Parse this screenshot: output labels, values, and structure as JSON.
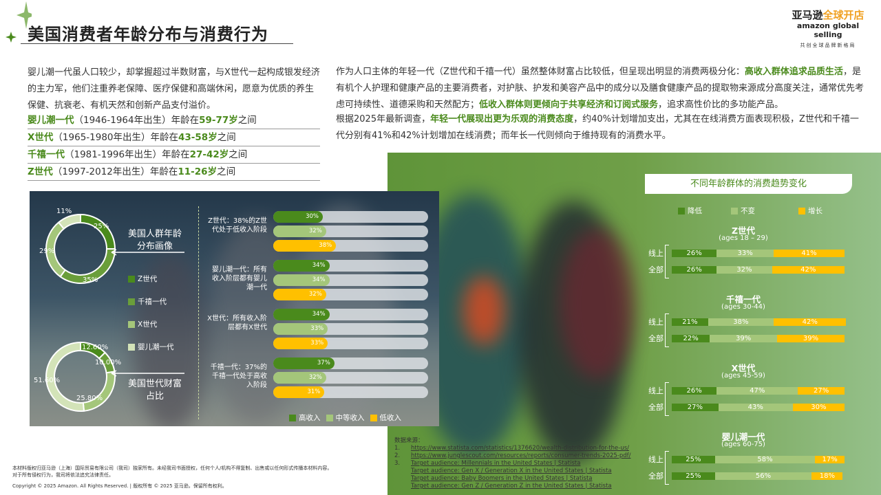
{
  "title": "美国消费者年龄分布与消费行为",
  "logo": {
    "cn": "亚马逊",
    "cn2": "全球开店",
    "en1": "amazon",
    "en2": "global selling",
    "slogan": "共创全球品牌新格局"
  },
  "intro": {
    "text": "婴儿潮一代虽人口较少，却掌握超过半数财富，与X世代一起构成银发经济的主力军，他们注重养老保障、医疗保健和高端休闲，愿意为优质的养生保健、抗衰老、有机天然和创新产品支付溢价。"
  },
  "generations": [
    {
      "name": "婴儿潮一代",
      "years": "（1946-1964年出生）年龄在",
      "range": "59-77岁",
      "tail": "之间"
    },
    {
      "name": "X世代",
      "years": "（1965-1980年出生）年龄在",
      "range": "43-58岁",
      "tail": "之间"
    },
    {
      "name": "千禧一代",
      "years": "（1981-1996年出生）年龄在",
      "range": "27-42岁",
      "tail": "之间"
    },
    {
      "name": "Z世代",
      "years": "（1997-2012年出生）年龄在",
      "range": "11-26岁",
      "tail": "之间"
    }
  ],
  "right_text": {
    "p1a": "作为人口主体的年轻一代（Z世代和千禧一代）虽然整体财富占比较低，但呈现出明显的消费两极分化：",
    "p1b": "高收入群体追求品质生活",
    "p1c": "，是有机个人护理和健康产品的主要消费者，对护肤、护发和美容产品中的成分以及膳食健康产品的提取物来源成分高度关注，通常优先考虑可持续性、道德采购和天然配方；",
    "p1d": "低收入群体则更倾向于共享经济和订阅式服务",
    "p1e": "，追求高性价比的多功能产品。",
    "p2a": "根据2025年最新调查，",
    "p2b": "年轻一代展现出更为乐观的消费态度",
    "p2c": "，约40%计划增加支出，尤其在在线消费方面表现积极，Z世代和千禧一代分别有41%和42%计划增加在线消费；而年长一代则倾向于维持现有的消费水平。"
  },
  "colors": {
    "dark_green": "#4a8a1c",
    "mid_green": "#6a9e3a",
    "light_green": "#a4c67a",
    "pale_green": "#d3e3b8",
    "yellow": "#ffc000"
  },
  "chart_data": [
    {
      "type": "pie",
      "title": "美国人群年龄分布画像",
      "categories": [
        "Z世代",
        "千禧一代",
        "X世代",
        "婴儿潮一代"
      ],
      "values": [
        25,
        35,
        29,
        11
      ],
      "labels": [
        "25%",
        "35%",
        "29%",
        "11%"
      ]
    },
    {
      "type": "pie",
      "title": "美国世代财富占比",
      "categories": [
        "Z世代",
        "千禧一代",
        "X世代",
        "婴儿潮一代"
      ],
      "values": [
        12.6,
        10.0,
        25.8,
        51.6
      ],
      "labels": [
        "12.60%",
        "10.00%",
        "25.80%",
        "51.60%"
      ]
    },
    {
      "type": "bar",
      "orientation": "horizontal",
      "legend": [
        "高收入",
        "中等收入",
        "低收入"
      ],
      "groups": [
        {
          "label": "Z世代：38%的Z世代处于低收入阶段",
          "values": [
            30,
            32,
            38
          ]
        },
        {
          "label": "婴儿潮一代：所有收入阶层都有婴儿潮一代",
          "values": [
            34,
            34,
            32
          ]
        },
        {
          "label": "X世代：所有收入阶层都有X世代",
          "values": [
            34,
            33,
            33
          ]
        },
        {
          "label": "千禧一代：37%的千禧一代处于高收入阶段",
          "values": [
            37,
            32,
            31
          ]
        }
      ]
    },
    {
      "type": "bar",
      "stacked": true,
      "orientation": "horizontal",
      "title": "不同年龄群体的消费趋势变化",
      "legend": [
        "降低",
        "不变",
        "增长"
      ],
      "groups": [
        {
          "name": "Z世代",
          "ages": "(ages 18 – 29)",
          "rows": [
            {
              "label": "线上",
              "values": [
                26,
                33,
                41
              ]
            },
            {
              "label": "全部",
              "values": [
                26,
                32,
                42
              ]
            }
          ]
        },
        {
          "name": "千禧一代",
          "ages": "(ages 30-44)",
          "rows": [
            {
              "label": "线上",
              "values": [
                21,
                38,
                42
              ]
            },
            {
              "label": "全部",
              "values": [
                22,
                39,
                39
              ]
            }
          ]
        },
        {
          "name": "X世代",
          "ages": "(ages 45-59)",
          "rows": [
            {
              "label": "线上",
              "values": [
                26,
                47,
                27
              ]
            },
            {
              "label": "全部",
              "values": [
                27,
                43,
                30
              ]
            }
          ]
        },
        {
          "name": "婴儿潮一代",
          "ages": "(ages 60-75)",
          "rows": [
            {
              "label": "线上",
              "values": [
                25,
                58,
                17
              ]
            },
            {
              "label": "全部",
              "values": [
                25,
                56,
                18
              ]
            }
          ]
        }
      ]
    }
  ],
  "sources": {
    "heading": "数据来源：",
    "items": [
      {
        "num": "1.",
        "text": "https://www.statista.com/statistics/1376620/wealth-distribution-for-the-us/"
      },
      {
        "num": "2.",
        "text": "https://www.junglescout.com/resources/reports/consumer-trends-2025-pdf/"
      },
      {
        "num": "3.",
        "text": "Target audience: Millennials in the United States | Statista"
      },
      {
        "num": "",
        "text": "Target audience: Gen X / Generation X in the United States | Statista"
      },
      {
        "num": "",
        "text": "Target audience: Baby Boomers in the United States | Statista"
      },
      {
        "num": "",
        "text": "Target audience: Gen Z / Generation Z in the United States | Statista"
      }
    ]
  },
  "footer": {
    "line1": "本材料版权归亚马逊（上海）国际贸易有限公司（我司）独家所有。未经我司书面授权，任何个人/机构不得复制、出售或以任何形式传播本材料内容。",
    "line2": "对于所有侵权行为，我司将依法追究法律责任。",
    "copyright": "Copyright © 2025 Amazon. All Rights Reserved. | 版权所有 © 2025 亚马逊。保留所有权利。"
  }
}
